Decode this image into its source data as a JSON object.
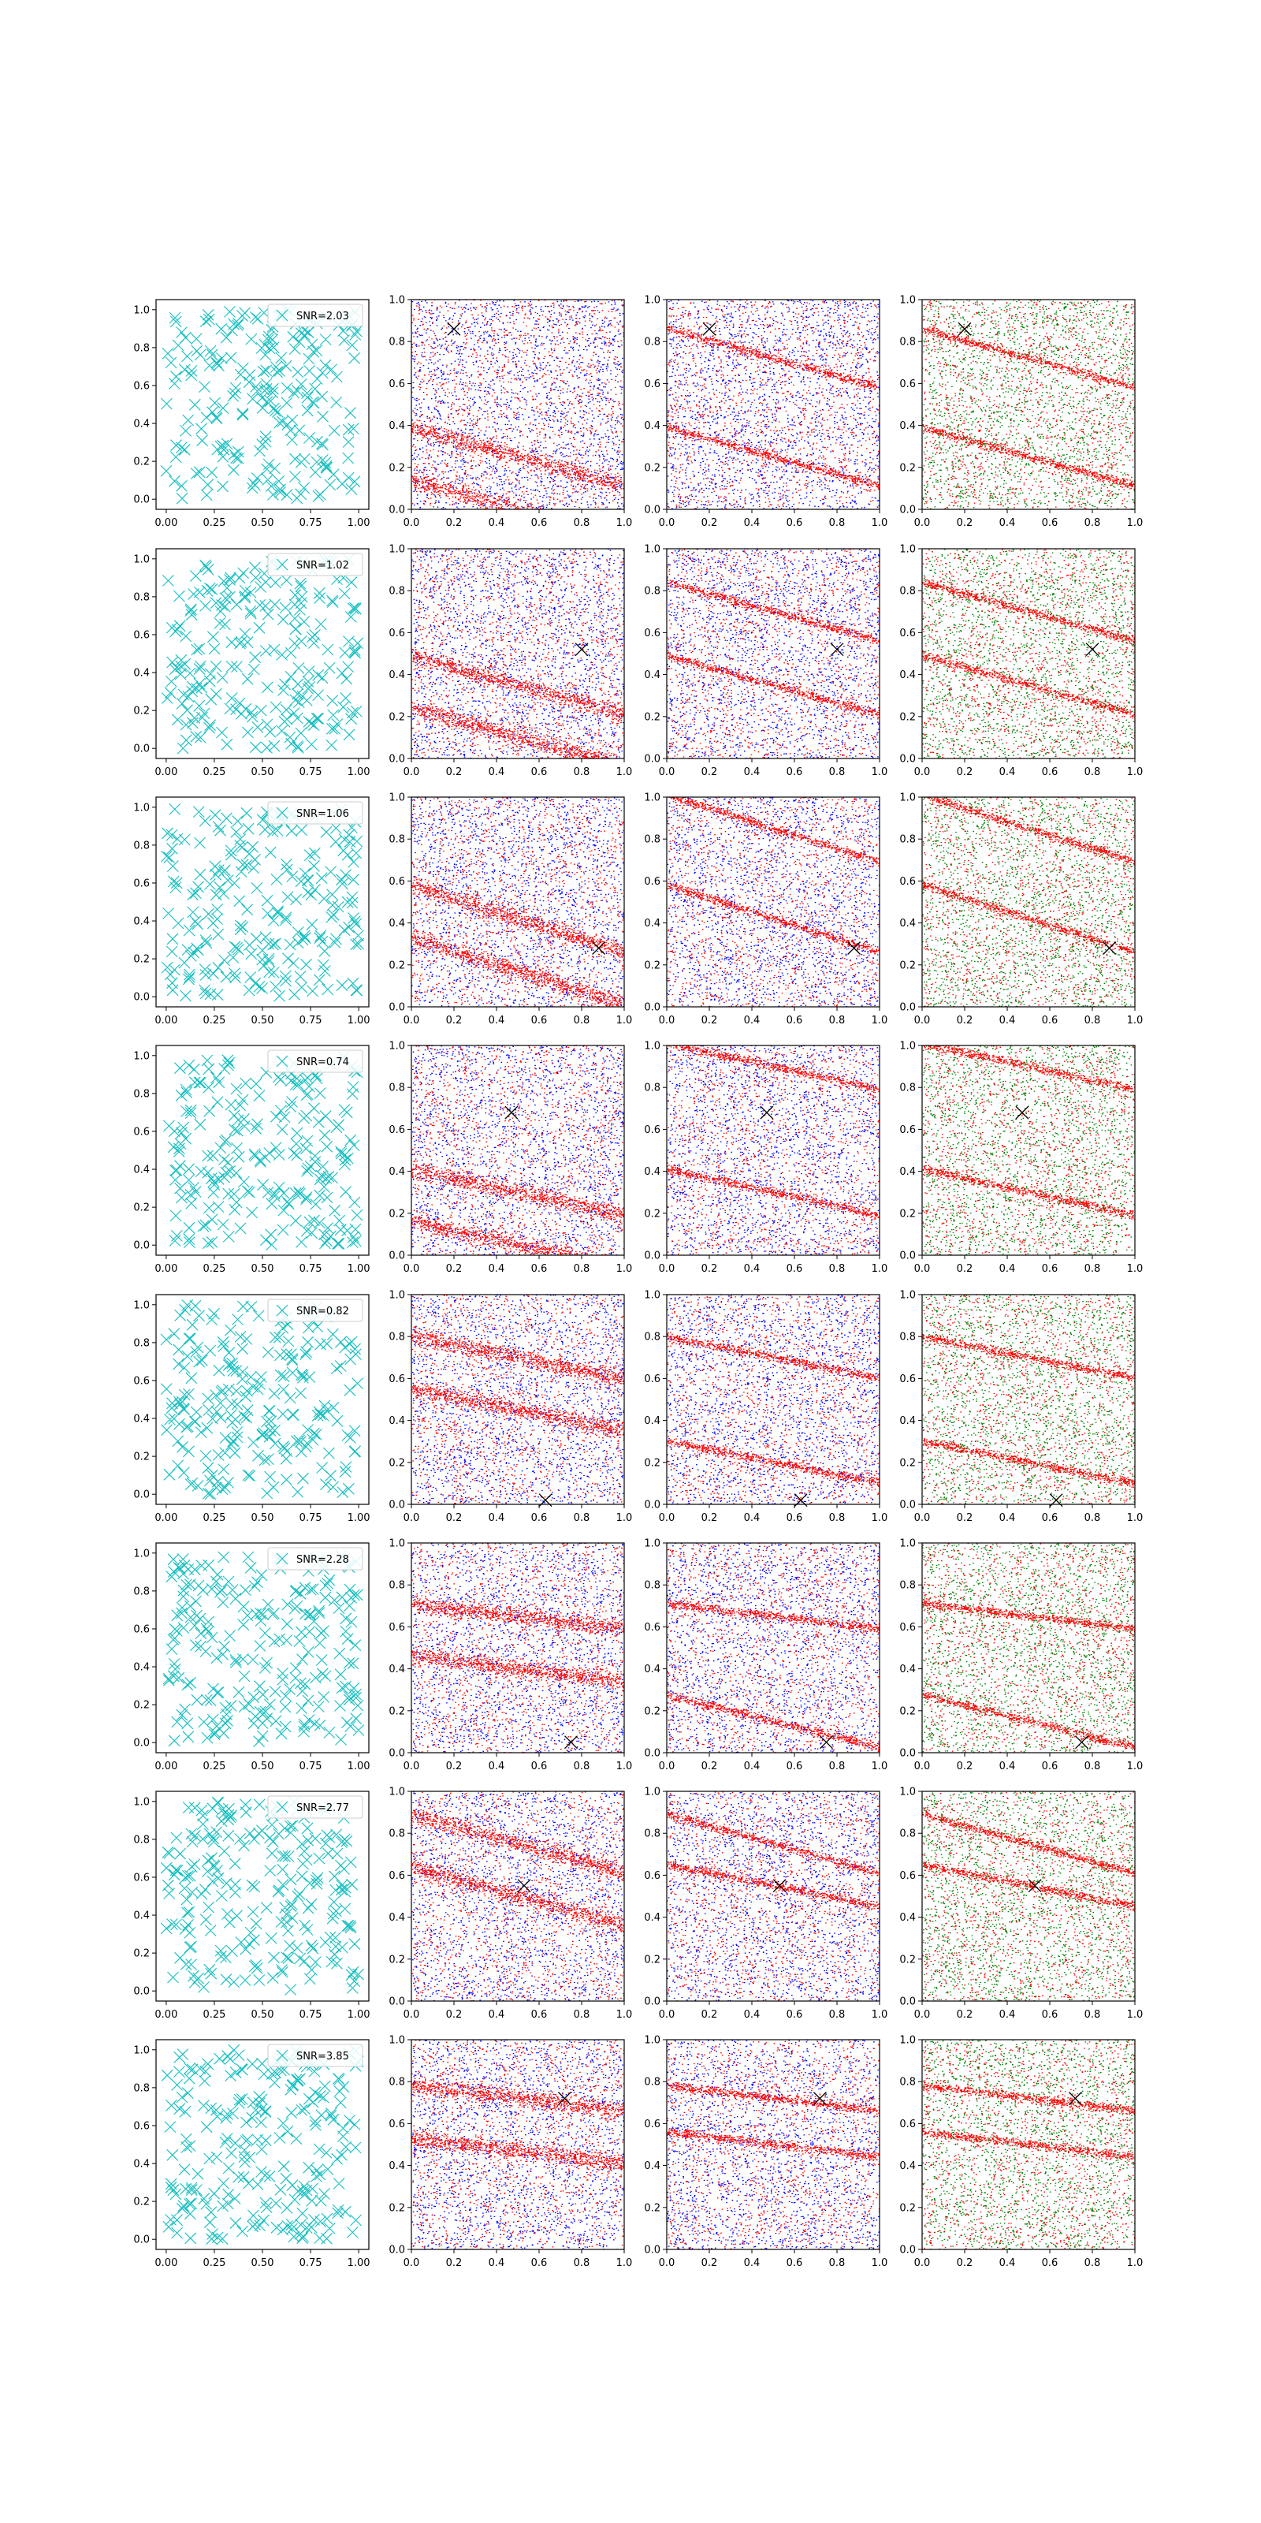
{
  "figure": {
    "rows": 8,
    "cols": 4,
    "colors": {
      "scatter_marker": "#17bfbf",
      "cross_marker": "#000000",
      "blue_points": "#0000ff",
      "red_points": "#ff0000",
      "green_points": "#008000",
      "axes": "#000000",
      "legend_border": "#cccccc"
    }
  },
  "chart_data": [
    {
      "row": 0,
      "type": "scatter",
      "legend": "SNR=2.03",
      "snr": 2.03,
      "cross": [
        0.2,
        0.86
      ],
      "seed": 11,
      "bands": [
        {
          "y": 0.25,
          "slope": -0.28
        },
        {
          "y": 0.72,
          "slope": -0.28
        }
      ],
      "xlim": [
        0,
        1
      ],
      "ylim": [
        0,
        1
      ],
      "xticks_first": [
        "0.00",
        "0.25",
        "0.50",
        "0.75",
        "1.00"
      ],
      "xticks": [
        "0.0",
        "0.2",
        "0.4",
        "0.6",
        "0.8",
        "1.0"
      ],
      "yticks": [
        "0.0",
        "0.2",
        "0.4",
        "0.6",
        "0.8",
        "1.0"
      ],
      "marker": "x",
      "panels": [
        "scatter",
        "red-blue",
        "red-blue",
        "red-green"
      ]
    },
    {
      "row": 1,
      "type": "scatter",
      "legend": "SNR=1.02",
      "snr": 1.02,
      "cross": [
        0.8,
        0.52
      ],
      "seed": 23,
      "bands": [
        {
          "y": 0.35,
          "slope": -0.28
        },
        {
          "y": 0.7,
          "slope": -0.28
        }
      ],
      "xlim": [
        0,
        1
      ],
      "ylim": [
        0,
        1
      ],
      "xticks_first": [
        "0.00",
        "0.25",
        "0.50",
        "0.75",
        "1.00"
      ],
      "xticks": [
        "0.0",
        "0.2",
        "0.4",
        "0.6",
        "0.8",
        "1.0"
      ],
      "yticks": [
        "0.0",
        "0.2",
        "0.4",
        "0.6",
        "0.8",
        "1.0"
      ],
      "marker": "x",
      "panels": [
        "scatter",
        "red-blue",
        "red-blue",
        "red-green"
      ]
    },
    {
      "row": 2,
      "type": "scatter",
      "legend": "SNR=1.06",
      "snr": 1.06,
      "cross": [
        0.88,
        0.28
      ],
      "seed": 37,
      "bands": [
        {
          "y": 0.42,
          "slope": -0.32
        },
        {
          "y": 0.85,
          "slope": -0.32
        }
      ],
      "xlim": [
        0,
        1
      ],
      "ylim": [
        0,
        1
      ],
      "xticks_first": [
        "0.00",
        "0.25",
        "0.50",
        "0.75",
        "1.00"
      ],
      "xticks": [
        "0.0",
        "0.2",
        "0.4",
        "0.6",
        "0.8",
        "1.0"
      ],
      "yticks": [
        "0.0",
        "0.2",
        "0.4",
        "0.6",
        "0.8",
        "1.0"
      ],
      "marker": "x",
      "panels": [
        "scatter",
        "red-blue",
        "red-blue",
        "red-green"
      ]
    },
    {
      "row": 3,
      "type": "scatter",
      "legend": "SNR=0.74",
      "snr": 0.74,
      "cross": [
        0.47,
        0.68
      ],
      "seed": 51,
      "bands": [
        {
          "y": 0.3,
          "slope": -0.22
        },
        {
          "y": 0.9,
          "slope": -0.22
        }
      ],
      "xlim": [
        0,
        1
      ],
      "ylim": [
        0,
        1
      ],
      "xticks_first": [
        "0.00",
        "0.25",
        "0.50",
        "0.75",
        "1.00"
      ],
      "xticks": [
        "0.0",
        "0.2",
        "0.4",
        "0.6",
        "0.8",
        "1.0"
      ],
      "yticks": [
        "0.0",
        "0.2",
        "0.4",
        "0.6",
        "0.8",
        "1.0"
      ],
      "marker": "x",
      "panels": [
        "scatter",
        "red-blue",
        "red-blue",
        "red-green"
      ]
    },
    {
      "row": 4,
      "type": "scatter",
      "legend": "SNR=0.82",
      "snr": 0.82,
      "cross": [
        0.63,
        0.02
      ],
      "seed": 67,
      "bands": [
        {
          "y": 0.7,
          "slope": -0.2
        },
        {
          "y": 0.2,
          "slope": -0.2
        }
      ],
      "xlim": [
        0,
        1
      ],
      "ylim": [
        0,
        1
      ],
      "xticks_first": [
        "0.00",
        "0.25",
        "0.50",
        "0.75",
        "1.00"
      ],
      "xticks": [
        "0.0",
        "0.2",
        "0.4",
        "0.6",
        "0.8",
        "1.0"
      ],
      "yticks": [
        "0.0",
        "0.2",
        "0.4",
        "0.6",
        "0.8",
        "1.0"
      ],
      "marker": "x",
      "panels": [
        "scatter",
        "red-blue",
        "red-blue",
        "red-green"
      ]
    },
    {
      "row": 5,
      "type": "scatter",
      "legend": "SNR=2.28",
      "snr": 2.28,
      "cross": [
        0.75,
        0.05
      ],
      "seed": 79,
      "bands": [
        {
          "y": 0.65,
          "slope": -0.12
        },
        {
          "y": 0.15,
          "slope": -0.25
        }
      ],
      "xlim": [
        0,
        1
      ],
      "ylim": [
        0,
        1
      ],
      "xticks_first": [
        "0.00",
        "0.25",
        "0.50",
        "0.75",
        "1.00"
      ],
      "xticks": [
        "0.0",
        "0.2",
        "0.4",
        "0.6",
        "0.8",
        "1.0"
      ],
      "yticks": [
        "0.0",
        "0.2",
        "0.4",
        "0.6",
        "0.8",
        "1.0"
      ],
      "marker": "x",
      "panels": [
        "scatter",
        "red-blue",
        "red-blue",
        "red-green"
      ]
    },
    {
      "row": 6,
      "type": "scatter",
      "legend": "SNR=2.77",
      "snr": 2.77,
      "cross": [
        0.53,
        0.55
      ],
      "seed": 91,
      "bands": [
        {
          "y": 0.75,
          "slope": -0.28
        },
        {
          "y": 0.55,
          "slope": -0.2
        }
      ],
      "xlim": [
        0,
        1
      ],
      "ylim": [
        0,
        1
      ],
      "xticks_first": [
        "0.00",
        "0.25",
        "0.50",
        "0.75",
        "1.00"
      ],
      "xticks": [
        "0.0",
        "0.2",
        "0.4",
        "0.6",
        "0.8",
        "1.0"
      ],
      "yticks": [
        "0.0",
        "0.2",
        "0.4",
        "0.6",
        "0.8",
        "1.0"
      ],
      "marker": "x",
      "panels": [
        "scatter",
        "red-blue",
        "red-blue",
        "red-green"
      ]
    },
    {
      "row": 7,
      "type": "scatter",
      "legend": "SNR=3.85",
      "snr": 3.85,
      "cross": [
        0.72,
        0.72
      ],
      "seed": 103,
      "bands": [
        {
          "y": 0.72,
          "slope": -0.12
        },
        {
          "y": 0.5,
          "slope": -0.12
        }
      ],
      "xlim": [
        0,
        1
      ],
      "ylim": [
        0,
        1
      ],
      "xticks_first": [
        "0.00",
        "0.25",
        "0.50",
        "0.75",
        "1.00"
      ],
      "xticks": [
        "0.0",
        "0.2",
        "0.4",
        "0.6",
        "0.8",
        "1.0"
      ],
      "yticks": [
        "0.0",
        "0.2",
        "0.4",
        "0.6",
        "0.8",
        "1.0"
      ],
      "marker": "x",
      "panels": [
        "scatter",
        "red-blue",
        "red-blue",
        "red-green"
      ]
    }
  ]
}
